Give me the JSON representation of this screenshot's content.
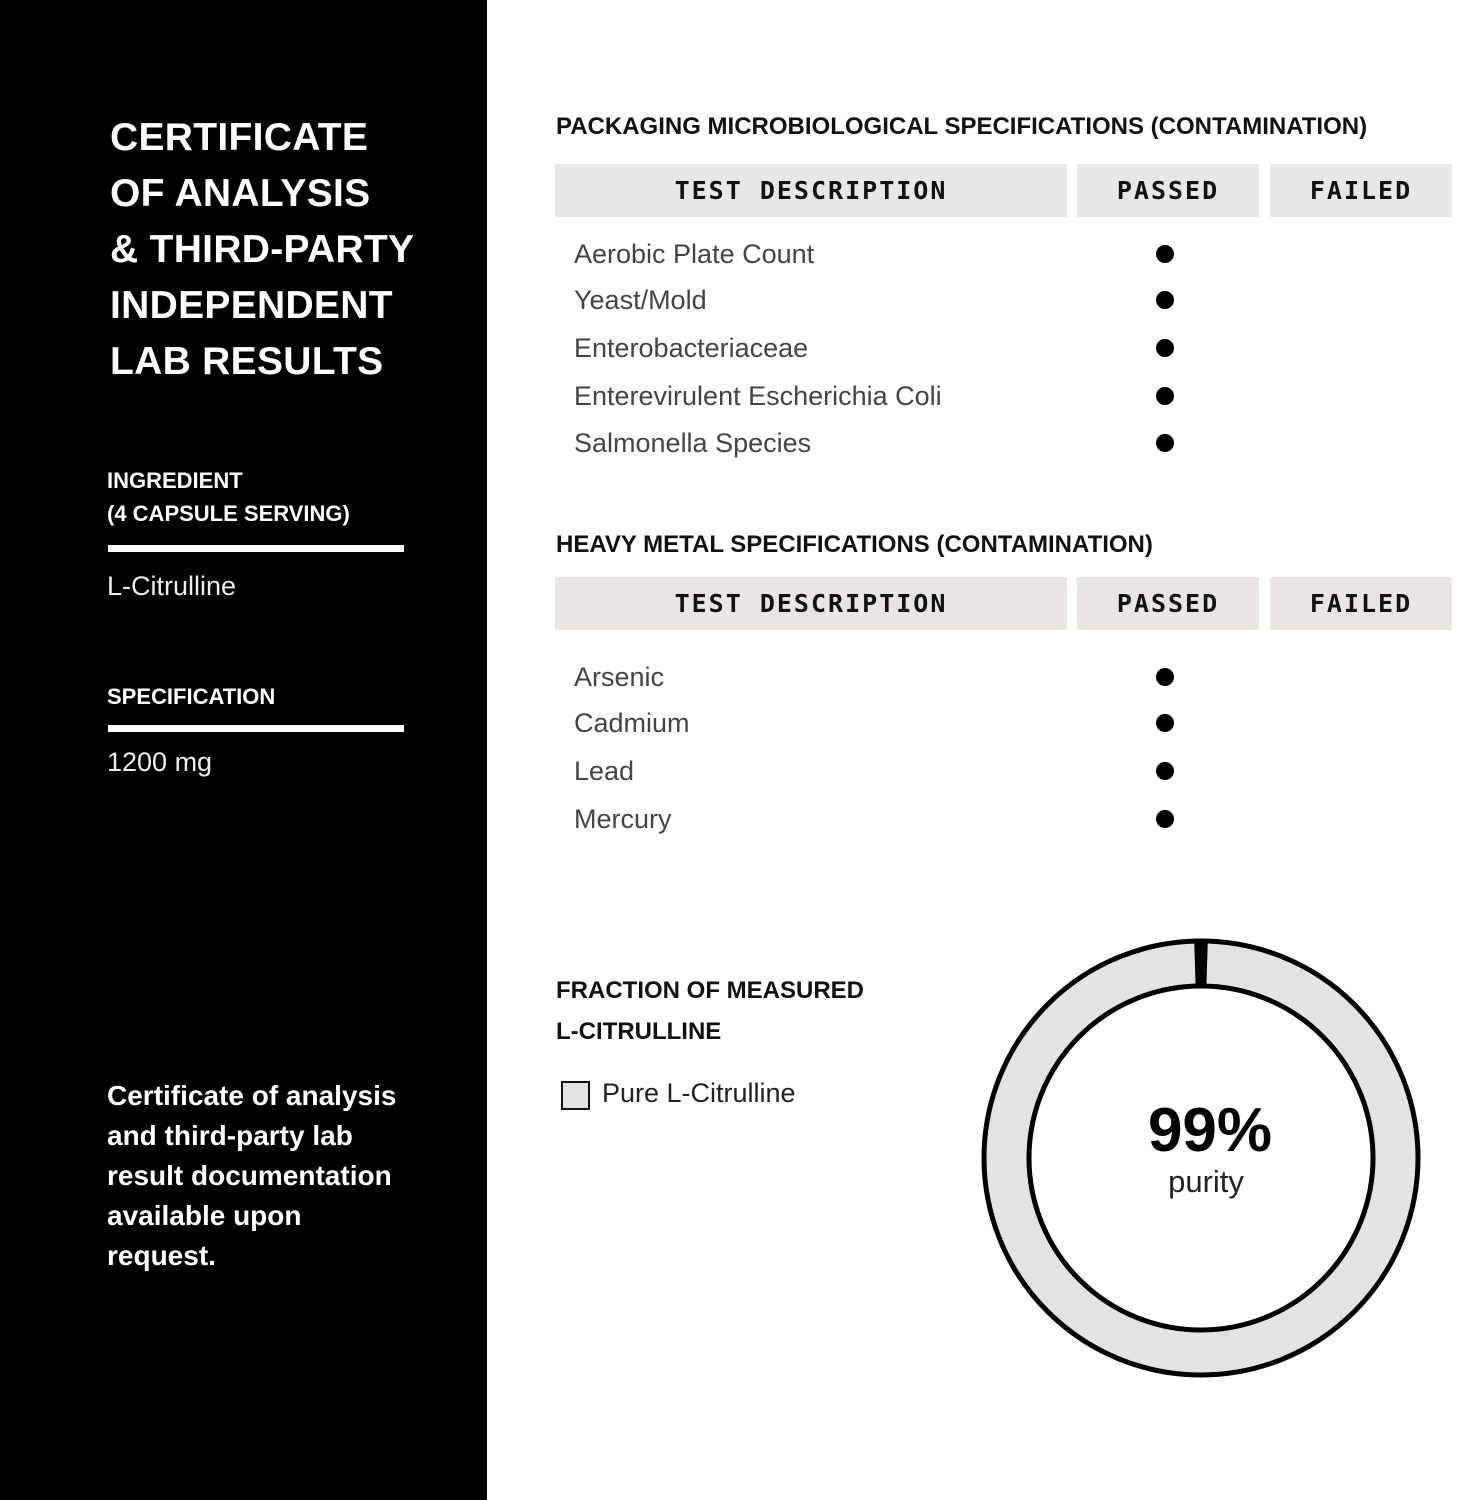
{
  "left_panel": {
    "title_lines": [
      "CERTIFICATE",
      "OF ANALYSIS",
      "& THIRD-PARTY",
      "INDEPENDENT",
      "LAB RESULTS"
    ],
    "ingredient_label": [
      "INGREDIENT",
      "(4 CAPSULE SERVING)"
    ],
    "ingredient_value": "L-Citrulline",
    "specification_label": "SPECIFICATION",
    "specification_value": "1200 mg",
    "note_lines": [
      "Certificate of analysis",
      "and third-party lab",
      "result documentation",
      "available upon",
      "request."
    ]
  },
  "microbio": {
    "heading": "PACKAGING MICROBIOLOGICAL SPECIFICATIONS (CONTAMINATION)",
    "header_color": "#e6e7e9",
    "columns": [
      "TEST DESCRIPTION",
      "PASSED",
      "FAILED"
    ],
    "rows": [
      {
        "test": "Aerobic Plate Count",
        "result": "passed"
      },
      {
        "test": "Yeast/Mold",
        "result": "passed"
      },
      {
        "test": "Enterobacteriaceae",
        "result": "passed"
      },
      {
        "test": "Enterevirulent Escherichia Coli",
        "result": "passed"
      },
      {
        "test": "Salmonella Species",
        "result": "passed"
      }
    ]
  },
  "metals": {
    "heading": "HEAVY METAL SPECIFICATIONS (CONTAMINATION)",
    "header_color": "#e9e6e1",
    "columns": [
      "TEST DESCRIPTION",
      "PASSED",
      "FAILED"
    ],
    "rows": [
      {
        "test": "Arsenic",
        "result": "passed"
      },
      {
        "test": "Cadmium",
        "result": "passed"
      },
      {
        "test": "Lead",
        "result": "passed"
      },
      {
        "test": "Mercury",
        "result": "passed"
      }
    ]
  },
  "chart_data": {
    "type": "pie",
    "title_lines": [
      "FRACTION OF MEASURED",
      "L-CITRULLINE"
    ],
    "legend": [
      {
        "name": "Pure L-Citrulline",
        "color": "#e3e3e1"
      }
    ],
    "slices": [
      {
        "name": "Pure L-Citrulline",
        "value": 99,
        "color": "#e3e3e1"
      },
      {
        "value": 1,
        "color": "#000000"
      }
    ],
    "center_value": "99%",
    "center_label": "purity"
  }
}
